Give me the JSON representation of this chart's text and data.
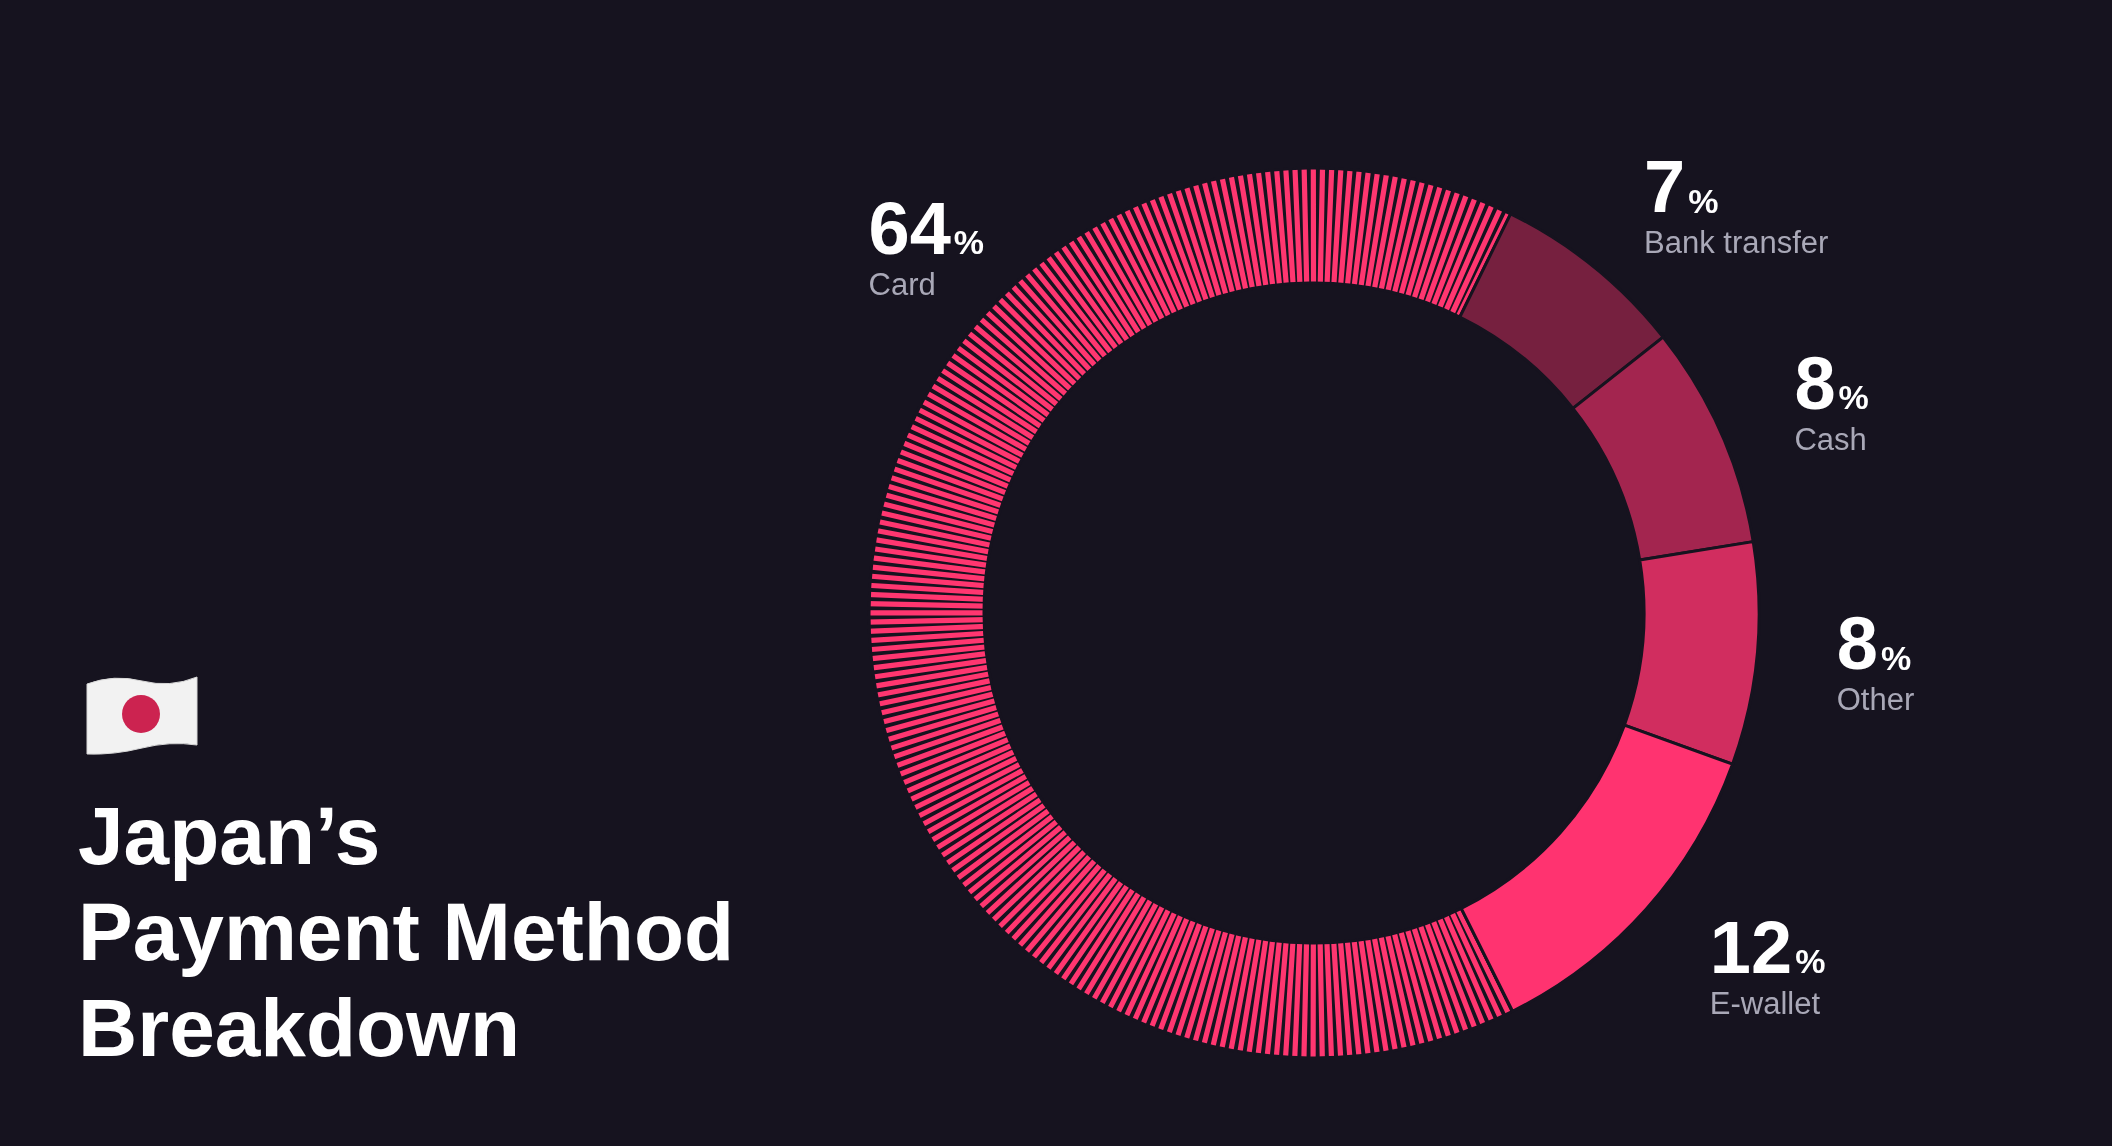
{
  "chart_data": {
    "type": "donut",
    "title": "Japan’s\nPayment Method\nBreakdown",
    "categories": [
      "Card",
      "Bank transfer",
      "Cash",
      "Other",
      "E-wallet"
    ],
    "values": [
      64,
      7,
      8,
      8,
      12
    ],
    "colors": [
      "#ff3670",
      "#76203f",
      "#a3254f",
      "#d12d5f",
      "#ff3370"
    ],
    "value_labels": [
      "64%",
      "7%",
      "8%",
      "8%",
      "12%"
    ]
  }
}
